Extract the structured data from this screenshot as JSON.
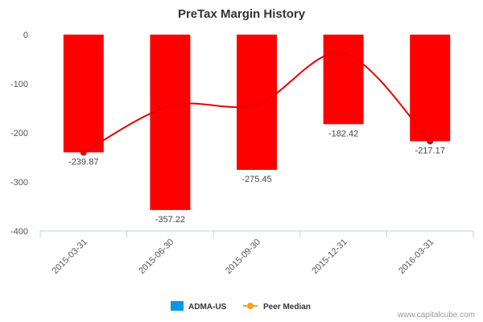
{
  "chart_data": {
    "type": "bar",
    "title": "PreTax Margin History",
    "categories": [
      "2015-03-31",
      "2015-06-30",
      "2015-09-30",
      "2015-12-31",
      "2016-03-31"
    ],
    "series": [
      {
        "name": "ADMA-US",
        "type": "bar",
        "values": [
          -239.87,
          -357.22,
          -275.45,
          -182.42,
          -217.17
        ],
        "color": "#ff0000",
        "legend_color": "#0099e6"
      },
      {
        "name": "Peer Median",
        "type": "line",
        "values": [
          -240,
          -145,
          -142,
          -38,
          -217
        ],
        "color": "#e60000",
        "legend_color": "#f7a21b"
      }
    ],
    "data_labels": [
      "-239.87",
      "-357.22",
      "-275.45",
      "-182.42",
      "-217.17"
    ],
    "ylim": [
      -400,
      0
    ],
    "yticks": [
      0,
      -100,
      -200,
      -300,
      -400
    ],
    "ytick_labels": [
      "0",
      "-100",
      "-200",
      "-300",
      "-400"
    ],
    "xlabel": "",
    "ylabel": "",
    "grid": false,
    "legend": "bottom-center"
  },
  "credit": "www.capitalcube.com"
}
